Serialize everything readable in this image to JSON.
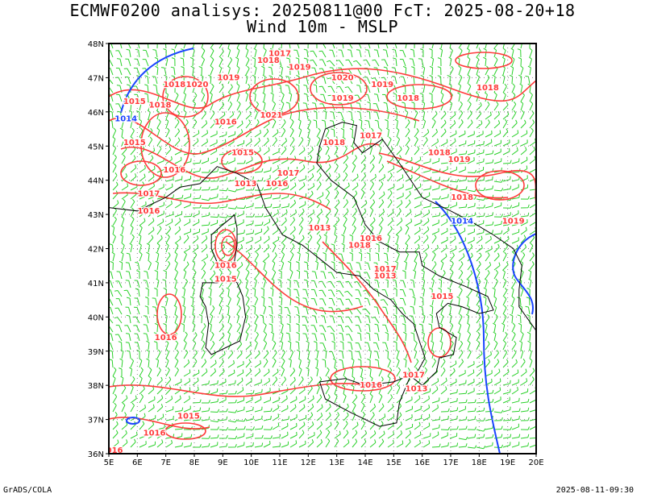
{
  "title": {
    "line1": "ECMWF0200 analisys: 20250811@00 FcT: 2025-08-20+18",
    "line2": "Wind 10m - MSLP"
  },
  "footer": {
    "left": "GrADS/COLA",
    "right": "2025-08-11-09:30"
  },
  "map": {
    "lon_range": [
      5,
      20
    ],
    "lat_range": [
      36,
      48
    ],
    "lon_ticks": [
      "5E",
      "6E",
      "7E",
      "8E",
      "9E",
      "10E",
      "11E",
      "12E",
      "13E",
      "14E",
      "15E",
      "16E",
      "17E",
      "18E",
      "19E",
      "20E"
    ],
    "lat_ticks": [
      "36N",
      "37N",
      "38N",
      "39N",
      "40N",
      "41N",
      "42N",
      "43N",
      "44N",
      "45N",
      "46N",
      "47N",
      "48N"
    ],
    "colors": {
      "wind_barbs": "#2ad12a",
      "high_isobars": "#ff3b3b",
      "low_isobars": "#1a44ff",
      "coastline": "#000000",
      "grid": "#888888"
    },
    "isobar_labels": [
      {
        "text": "1017",
        "lon": 11.0,
        "lat": 47.7,
        "color": "red"
      },
      {
        "text": "1018",
        "lon": 10.6,
        "lat": 47.5,
        "color": "red"
      },
      {
        "text": "1019",
        "lon": 11.7,
        "lat": 47.3,
        "color": "red"
      },
      {
        "text": "1020",
        "lon": 13.2,
        "lat": 47.0,
        "color": "red"
      },
      {
        "text": "1019",
        "lon": 9.2,
        "lat": 47.0,
        "color": "red"
      },
      {
        "text": "1018",
        "lon": 7.3,
        "lat": 46.8,
        "color": "red"
      },
      {
        "text": "1020",
        "lon": 8.1,
        "lat": 46.8,
        "color": "red"
      },
      {
        "text": "1019",
        "lon": 14.6,
        "lat": 46.8,
        "color": "red"
      },
      {
        "text": "1018",
        "lon": 18.3,
        "lat": 46.7,
        "color": "red"
      },
      {
        "text": "1019",
        "lon": 13.2,
        "lat": 46.4,
        "color": "red"
      },
      {
        "text": "1018",
        "lon": 15.5,
        "lat": 46.4,
        "color": "red"
      },
      {
        "text": "1015",
        "lon": 5.9,
        "lat": 46.3,
        "color": "red"
      },
      {
        "text": "1018",
        "lon": 6.8,
        "lat": 46.2,
        "color": "red"
      },
      {
        "text": "1021",
        "lon": 10.7,
        "lat": 45.9,
        "color": "red"
      },
      {
        "text": "1016",
        "lon": 9.1,
        "lat": 45.7,
        "color": "red"
      },
      {
        "text": "1014",
        "lon": 5.6,
        "lat": 45.8,
        "color": "blue"
      },
      {
        "text": "1017",
        "lon": 14.2,
        "lat": 45.3,
        "color": "red"
      },
      {
        "text": "1015",
        "lon": 5.9,
        "lat": 45.1,
        "color": "red"
      },
      {
        "text": "1018",
        "lon": 12.9,
        "lat": 45.1,
        "color": "red"
      },
      {
        "text": "1015",
        "lon": 9.7,
        "lat": 44.8,
        "color": "red"
      },
      {
        "text": "1018",
        "lon": 16.6,
        "lat": 44.8,
        "color": "red"
      },
      {
        "text": "1019",
        "lon": 17.3,
        "lat": 44.6,
        "color": "red"
      },
      {
        "text": "1016",
        "lon": 7.3,
        "lat": 44.3,
        "color": "red"
      },
      {
        "text": "1017",
        "lon": 11.3,
        "lat": 44.2,
        "color": "red"
      },
      {
        "text": "1013",
        "lon": 9.8,
        "lat": 43.9,
        "color": "red"
      },
      {
        "text": "1016",
        "lon": 10.9,
        "lat": 43.9,
        "color": "red"
      },
      {
        "text": "1017",
        "lon": 6.4,
        "lat": 43.6,
        "color": "red"
      },
      {
        "text": "1018",
        "lon": 17.4,
        "lat": 43.5,
        "color": "red"
      },
      {
        "text": "1016",
        "lon": 6.4,
        "lat": 43.1,
        "color": "red"
      },
      {
        "text": "1014",
        "lon": 17.4,
        "lat": 42.8,
        "color": "blue"
      },
      {
        "text": "1019",
        "lon": 19.2,
        "lat": 42.8,
        "color": "red"
      },
      {
        "text": "1013",
        "lon": 12.4,
        "lat": 42.6,
        "color": "red"
      },
      {
        "text": "1016",
        "lon": 14.2,
        "lat": 42.3,
        "color": "red"
      },
      {
        "text": "1018",
        "lon": 13.8,
        "lat": 42.1,
        "color": "red"
      },
      {
        "text": "1016",
        "lon": 9.1,
        "lat": 41.5,
        "color": "red"
      },
      {
        "text": "1017",
        "lon": 14.7,
        "lat": 41.4,
        "color": "red"
      },
      {
        "text": "1013",
        "lon": 14.7,
        "lat": 41.2,
        "color": "red"
      },
      {
        "text": "1015",
        "lon": 9.1,
        "lat": 41.1,
        "color": "red"
      },
      {
        "text": "1015",
        "lon": 16.7,
        "lat": 40.6,
        "color": "red"
      },
      {
        "text": "1016",
        "lon": 7.0,
        "lat": 39.4,
        "color": "red"
      },
      {
        "text": "1017",
        "lon": 15.7,
        "lat": 38.3,
        "color": "red"
      },
      {
        "text": "1016",
        "lon": 14.2,
        "lat": 38.0,
        "color": "red"
      },
      {
        "text": "1013",
        "lon": 15.8,
        "lat": 37.9,
        "color": "red"
      },
      {
        "text": "1015",
        "lon": 7.8,
        "lat": 37.1,
        "color": "red"
      },
      {
        "text": "1016",
        "lon": 6.6,
        "lat": 36.6,
        "color": "red"
      },
      {
        "text": "016",
        "lon": 5.2,
        "lat": 36.1,
        "color": "red"
      }
    ]
  }
}
